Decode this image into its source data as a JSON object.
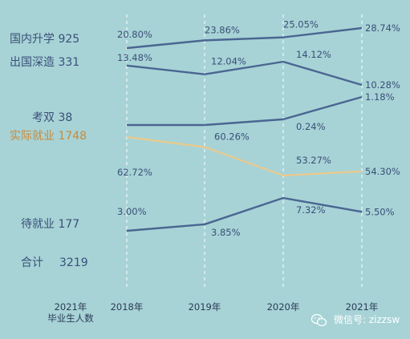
{
  "chart_data": {
    "type": "line",
    "x": [
      "2018年",
      "2019年",
      "2020年",
      "2021年"
    ],
    "row_header": [
      "2021年",
      "毕业生人数"
    ],
    "series": [
      {
        "name": "国内升学",
        "count": "925",
        "values": [
          20.8,
          23.86,
          25.05,
          28.74
        ],
        "labels": [
          "20.80%",
          "23.86%",
          "25.05%",
          "28.74%"
        ]
      },
      {
        "name": "出国深造",
        "count": "331",
        "values": [
          13.48,
          12.04,
          14.12,
          10.28
        ],
        "labels": [
          "13.48%",
          "12.04%",
          "14.12%",
          "10.28%"
        ]
      },
      {
        "name": "考双",
        "count": "38",
        "values": [
          null,
          null,
          0.24,
          1.18
        ],
        "labels": [
          "",
          "",
          "0.24%",
          "1.18%"
        ]
      },
      {
        "name": "实际就业",
        "count": "1748",
        "values": [
          62.72,
          60.26,
          53.27,
          54.3
        ],
        "labels": [
          "62.72%",
          "60.26%",
          "53.27%",
          "54.30%"
        ]
      },
      {
        "name": "待就业",
        "count": "177",
        "values": [
          3.0,
          3.85,
          7.32,
          5.5
        ],
        "labels": [
          "3.00%",
          "3.85%",
          "7.32%",
          "5.50%"
        ]
      }
    ],
    "total": {
      "name": "合计",
      "count": "3219"
    },
    "highlight_series": "实际就业",
    "colors": {
      "background": "#a7d3d6",
      "line": "#4a6691",
      "highlight": "#ecc98a",
      "text": "#3a4f78",
      "highlight_text": "#c88a3a",
      "grid": "#ffffff"
    },
    "grid": "dashed vertical"
  },
  "watermark": {
    "icon": "wechat-icon",
    "text": "微信号: zizzsw"
  }
}
